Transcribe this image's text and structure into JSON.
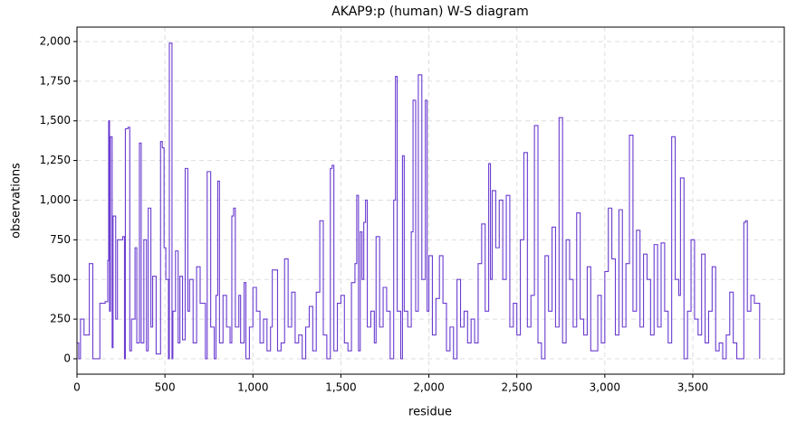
{
  "chart_data": {
    "type": "line",
    "drawstyle": "steps-post",
    "title": "AKAP9:p (human) W-S diagram",
    "x_label": "residue",
    "y_label": "observations",
    "grid": true,
    "xlim": [
      0,
      4020
    ],
    "ylim": [
      -97,
      2091
    ],
    "xticks": [
      0,
      500,
      {
        "value": 1000,
        "label": "1,000"
      },
      {
        "value": 1500,
        "label": "1,500"
      },
      {
        "value": 2000,
        "label": "2,000"
      },
      {
        "value": 2500,
        "label": "2,500"
      },
      {
        "value": 3000,
        "label": "3,000"
      },
      {
        "value": 3500,
        "label": "3,500"
      }
    ],
    "yticks": [
      0,
      250,
      500,
      750,
      {
        "value": 1000,
        "label": "1,000"
      },
      {
        "value": 1250,
        "label": "1,250"
      },
      {
        "value": 1500,
        "label": "1,500"
      },
      {
        "value": 1750,
        "label": "1,750"
      },
      {
        "value": 2000,
        "label": "2,000"
      }
    ],
    "series": [
      {
        "color": "#6a3bd0",
        "x": [
          0,
          10,
          20,
          40,
          60,
          70,
          90,
          110,
          130,
          160,
          175,
          180,
          185,
          190,
          200,
          205,
          220,
          230,
          260,
          270,
          275,
          290,
          300,
          310,
          330,
          340,
          355,
          365,
          380,
          395,
          405,
          420,
          430,
          450,
          475,
          485,
          495,
          505,
          520,
          525,
          540,
          545,
          560,
          575,
          585,
          600,
          615,
          630,
          640,
          660,
          680,
          700,
          730,
          740,
          760,
          780,
          790,
          800,
          810,
          830,
          850,
          870,
          880,
          890,
          900,
          920,
          930,
          950,
          960,
          980,
          1000,
          1020,
          1040,
          1060,
          1080,
          1100,
          1110,
          1140,
          1160,
          1180,
          1200,
          1220,
          1240,
          1260,
          1280,
          1300,
          1320,
          1340,
          1360,
          1380,
          1400,
          1420,
          1440,
          1450,
          1460,
          1480,
          1500,
          1520,
          1540,
          1560,
          1580,
          1590,
          1600,
          1610,
          1620,
          1630,
          1640,
          1650,
          1670,
          1690,
          1700,
          1720,
          1740,
          1760,
          1780,
          1800,
          1810,
          1820,
          1840,
          1850,
          1860,
          1880,
          1900,
          1910,
          1925,
          1940,
          1960,
          1980,
          1990,
          2000,
          2020,
          2040,
          2060,
          2080,
          2100,
          2120,
          2140,
          2160,
          2180,
          2200,
          2220,
          2240,
          2260,
          2280,
          2300,
          2320,
          2340,
          2350,
          2360,
          2380,
          2400,
          2420,
          2440,
          2460,
          2480,
          2500,
          2520,
          2540,
          2560,
          2580,
          2600,
          2620,
          2640,
          2660,
          2680,
          2700,
          2720,
          2740,
          2760,
          2780,
          2800,
          2820,
          2840,
          2860,
          2880,
          2900,
          2920,
          2940,
          2960,
          2980,
          3000,
          3020,
          3040,
          3060,
          3080,
          3100,
          3120,
          3140,
          3160,
          3180,
          3200,
          3220,
          3240,
          3260,
          3280,
          3300,
          3320,
          3340,
          3360,
          3380,
          3400,
          3420,
          3430,
          3450,
          3470,
          3490,
          3510,
          3530,
          3550,
          3570,
          3590,
          3610,
          3630,
          3650,
          3670,
          3690,
          3710,
          3730,
          3750,
          3790,
          3800,
          3810,
          3830,
          3850,
          3880
        ],
        "values": [
          100,
          0,
          250,
          150,
          150,
          600,
          0,
          0,
          350,
          360,
          620,
          1500,
          300,
          1400,
          70,
          900,
          250,
          750,
          770,
          0,
          1450,
          1460,
          50,
          250,
          700,
          100,
          1360,
          100,
          750,
          50,
          950,
          200,
          520,
          30,
          1370,
          1330,
          700,
          500,
          0,
          1990,
          0,
          300,
          680,
          100,
          520,
          120,
          1200,
          300,
          500,
          100,
          580,
          350,
          0,
          1180,
          200,
          0,
          400,
          1120,
          100,
          400,
          200,
          100,
          900,
          950,
          200,
          400,
          100,
          480,
          0,
          200,
          450,
          300,
          100,
          250,
          50,
          200,
          560,
          50,
          100,
          630,
          200,
          420,
          100,
          150,
          0,
          200,
          330,
          50,
          420,
          870,
          150,
          0,
          1200,
          1220,
          50,
          350,
          400,
          100,
          50,
          480,
          600,
          1030,
          50,
          800,
          500,
          860,
          1000,
          200,
          300,
          100,
          770,
          200,
          450,
          300,
          0,
          1000,
          1780,
          300,
          0,
          1280,
          300,
          200,
          800,
          1630,
          300,
          1790,
          500,
          1630,
          300,
          650,
          150,
          380,
          650,
          350,
          50,
          200,
          0,
          500,
          200,
          300,
          100,
          250,
          100,
          600,
          850,
          300,
          1230,
          500,
          1060,
          700,
          1000,
          500,
          1030,
          200,
          350,
          150,
          750,
          1300,
          200,
          400,
          1470,
          100,
          0,
          650,
          300,
          830,
          200,
          1520,
          100,
          750,
          500,
          200,
          920,
          250,
          150,
          580,
          50,
          50,
          400,
          100,
          550,
          950,
          630,
          150,
          940,
          200,
          600,
          1410,
          300,
          810,
          200,
          660,
          500,
          150,
          720,
          200,
          730,
          300,
          100,
          1400,
          500,
          400,
          1140,
          0,
          300,
          750,
          250,
          150,
          660,
          100,
          300,
          580,
          50,
          100,
          0,
          150,
          420,
          100,
          0,
          860,
          870,
          300,
          400,
          350,
          0
        ]
      }
    ]
  }
}
